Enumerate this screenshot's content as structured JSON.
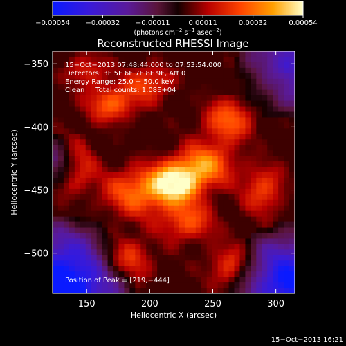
{
  "colorbar": {
    "ticks": [
      "−0.00054",
      "−0.00032",
      "−0.00011",
      "0.00011",
      "0.00032",
      "0.00054"
    ],
    "unit_main": "(photons cm",
    "unit_sup1": "−2",
    "unit_mid": " s",
    "unit_sup2": "−1",
    "unit_mid2": " asec",
    "unit_sup3": "−2",
    "unit_end": ")"
  },
  "title": "Reconstructed RHESSI Image",
  "annotations": {
    "time_range": "15−Oct−2013 07:48:44.000 to 07:53:54.000",
    "detectors": "Detectors: 3F 5F 6F 7F 8F 9F, Att 0",
    "energy": "Energy Range: 25.0 − 50.0 keV",
    "clean": "Clean     Total counts: 1.08E+04",
    "peak": "Position of Peak = [219,−444]"
  },
  "timestamp": "15−Oct−2013 16:21",
  "chart_data": {
    "type": "heatmap",
    "xlabel": "Heliocentric X (arcsec)",
    "ylabel": "Heliocentric Y (arcsec)",
    "xlim": [
      123,
      315
    ],
    "ylim": [
      -532,
      -340
    ],
    "xticks": [
      150,
      200,
      250,
      300
    ],
    "yticks": [
      -350,
      -400,
      -450,
      -500
    ],
    "ytick_labels": [
      "−350",
      "−400",
      "−450",
      "−500"
    ],
    "value_range": [
      -0.00054,
      0.00054
    ],
    "peak": [
      219,
      -444
    ],
    "sources": [
      {
        "x": 220,
        "y": -445,
        "amp": 1.0,
        "sx": 14,
        "sy": 11
      },
      {
        "x": 244,
        "y": -430,
        "amp": 0.65,
        "sx": 16,
        "sy": 12
      },
      {
        "x": 188,
        "y": -452,
        "amp": 0.55,
        "sx": 18,
        "sy": 14
      },
      {
        "x": 170,
        "y": -382,
        "amp": 0.55,
        "sx": 14,
        "sy": 10
      },
      {
        "x": 200,
        "y": -365,
        "amp": 0.45,
        "sx": 14,
        "sy": 10
      },
      {
        "x": 262,
        "y": -395,
        "amp": 0.55,
        "sx": 14,
        "sy": 12
      },
      {
        "x": 290,
        "y": -450,
        "amp": 0.45,
        "sx": 12,
        "sy": 14
      },
      {
        "x": 230,
        "y": -475,
        "amp": 0.5,
        "sx": 15,
        "sy": 11
      },
      {
        "x": 180,
        "y": -505,
        "amp": 0.45,
        "sx": 16,
        "sy": 12
      },
      {
        "x": 265,
        "y": -510,
        "amp": 0.4,
        "sx": 14,
        "sy": 12
      },
      {
        "x": 140,
        "y": -430,
        "amp": 0.4,
        "sx": 12,
        "sy": 16
      },
      {
        "x": 300,
        "y": -360,
        "amp": 0.3,
        "sx": 14,
        "sy": 12
      },
      {
        "x": 150,
        "y": -355,
        "amp": 0.35,
        "sx": 12,
        "sy": 10
      }
    ],
    "background_level": 0.28,
    "dark_corners": [
      "bottom-left",
      "bottom-right",
      "top-right",
      "left-edge"
    ]
  }
}
